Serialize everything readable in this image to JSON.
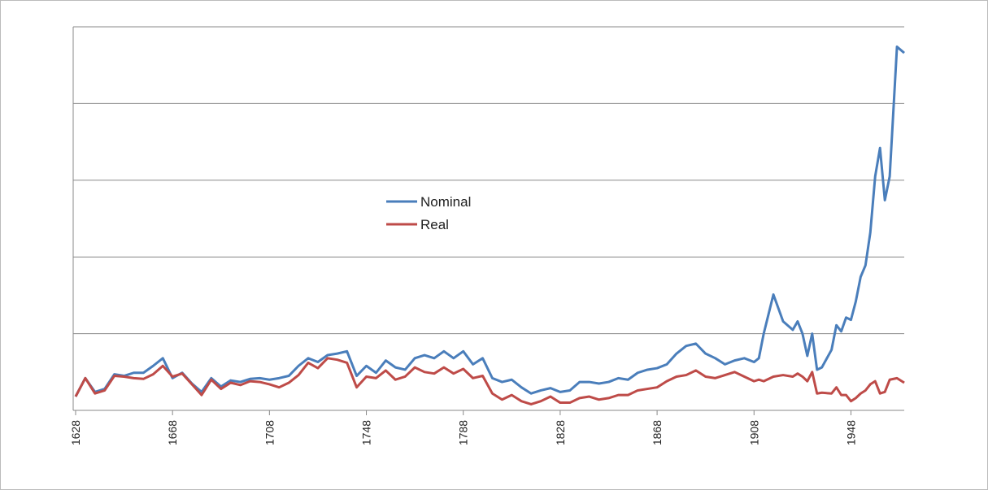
{
  "chart_data": {
    "type": "line",
    "x": [
      1628,
      1632,
      1636,
      1640,
      1644,
      1648,
      1652,
      1656,
      1660,
      1664,
      1668,
      1672,
      1676,
      1680,
      1684,
      1688,
      1692,
      1696,
      1700,
      1704,
      1708,
      1712,
      1716,
      1720,
      1724,
      1728,
      1732,
      1736,
      1740,
      1744,
      1748,
      1752,
      1756,
      1760,
      1764,
      1768,
      1772,
      1776,
      1780,
      1784,
      1788,
      1792,
      1796,
      1800,
      1804,
      1808,
      1812,
      1816,
      1820,
      1824,
      1828,
      1832,
      1836,
      1840,
      1844,
      1848,
      1852,
      1856,
      1860,
      1864,
      1868,
      1872,
      1876,
      1880,
      1884,
      1888,
      1892,
      1896,
      1900,
      1904,
      1908,
      1910,
      1912,
      1916,
      1920,
      1924,
      1926,
      1928,
      1930,
      1932,
      1934,
      1936,
      1940,
      1942,
      1944,
      1946,
      1948,
      1950,
      1952,
      1954,
      1956,
      1958,
      1960,
      1962,
      1964,
      1967,
      1970
    ],
    "series": [
      {
        "name": "Nominal",
        "color": "#4a7ebb",
        "values": [
          0.18,
          0.42,
          0.24,
          0.28,
          0.47,
          0.45,
          0.49,
          0.49,
          0.58,
          0.68,
          0.42,
          0.49,
          0.35,
          0.24,
          0.42,
          0.31,
          0.39,
          0.37,
          0.41,
          0.42,
          0.4,
          0.42,
          0.45,
          0.58,
          0.68,
          0.63,
          0.72,
          0.74,
          0.77,
          0.45,
          0.58,
          0.49,
          0.65,
          0.56,
          0.53,
          0.68,
          0.72,
          0.68,
          0.77,
          0.68,
          0.77,
          0.6,
          0.68,
          0.42,
          0.37,
          0.4,
          0.3,
          0.22,
          0.26,
          0.29,
          0.24,
          0.26,
          0.37,
          0.37,
          0.35,
          0.37,
          0.42,
          0.4,
          0.49,
          0.53,
          0.55,
          0.6,
          0.74,
          0.84,
          0.87,
          0.74,
          0.68,
          0.6,
          0.65,
          0.68,
          0.63,
          0.68,
          1.0,
          1.51,
          1.16,
          1.05,
          1.16,
          1.0,
          0.71,
          1.0,
          0.53,
          0.56,
          0.79,
          1.11,
          1.03,
          1.21,
          1.18,
          1.42,
          1.74,
          1.89,
          2.32,
          3.05,
          3.42,
          2.74,
          3.05,
          4.74,
          4.66
        ]
      },
      {
        "name": "Real",
        "color": "#be4b48",
        "values": [
          0.18,
          0.42,
          0.22,
          0.26,
          0.45,
          0.44,
          0.42,
          0.41,
          0.47,
          0.58,
          0.44,
          0.48,
          0.34,
          0.2,
          0.4,
          0.28,
          0.36,
          0.33,
          0.38,
          0.37,
          0.34,
          0.3,
          0.36,
          0.46,
          0.62,
          0.55,
          0.68,
          0.66,
          0.62,
          0.3,
          0.44,
          0.42,
          0.52,
          0.4,
          0.44,
          0.56,
          0.5,
          0.48,
          0.56,
          0.48,
          0.54,
          0.42,
          0.45,
          0.22,
          0.14,
          0.2,
          0.12,
          0.08,
          0.12,
          0.18,
          0.1,
          0.1,
          0.16,
          0.18,
          0.14,
          0.16,
          0.2,
          0.2,
          0.26,
          0.28,
          0.3,
          0.38,
          0.44,
          0.46,
          0.52,
          0.44,
          0.42,
          0.46,
          0.5,
          0.44,
          0.38,
          0.4,
          0.38,
          0.44,
          0.46,
          0.44,
          0.48,
          0.44,
          0.38,
          0.5,
          0.22,
          0.23,
          0.22,
          0.3,
          0.2,
          0.2,
          0.12,
          0.16,
          0.22,
          0.26,
          0.34,
          0.38,
          0.22,
          0.24,
          0.4,
          0.42,
          0.36
        ]
      }
    ],
    "xlim": [
      1627,
      1970
    ],
    "xticks": [
      1628,
      1668,
      1708,
      1748,
      1788,
      1828,
      1868,
      1908,
      1948
    ],
    "ylim": [
      0,
      5
    ],
    "yticks": [
      0,
      1,
      2,
      3,
      4,
      5
    ],
    "grid": true,
    "legend": "center"
  }
}
